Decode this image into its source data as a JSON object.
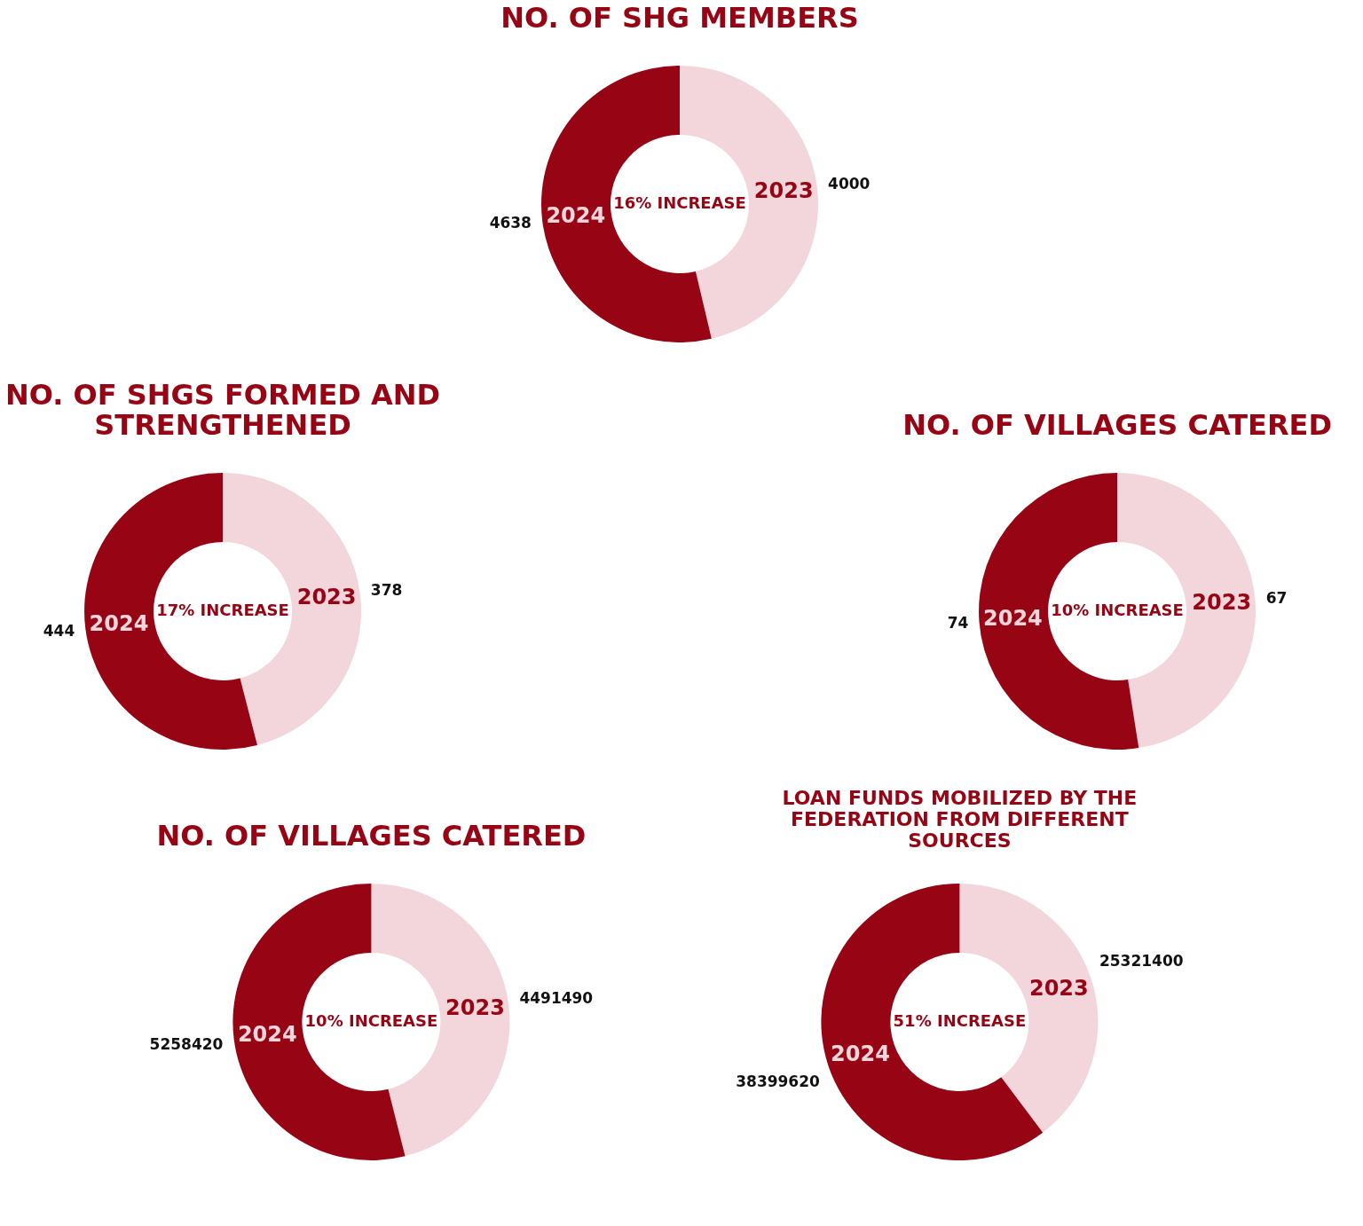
{
  "chart_data": [
    {
      "type": "donut",
      "title": "NO. OF SHG MEMBERS",
      "categories": [
        "2023",
        "2024"
      ],
      "values": [
        4000,
        4638
      ],
      "colors": [
        "#f2d6dc",
        "#970515"
      ],
      "data_labels": true,
      "annotations": [
        "16% INCREASE"
      ]
    },
    {
      "type": "donut",
      "title": "NO. OF SHGS FORMED AND STRENGTHENED",
      "categories": [
        "2023",
        "2024"
      ],
      "values": [
        378,
        444
      ],
      "colors": [
        "#f2d6dc",
        "#970515"
      ],
      "data_labels": true,
      "annotations": [
        "17% INCREASE"
      ]
    },
    {
      "type": "donut",
      "title": "NO. OF VILLAGES CATERED",
      "categories": [
        "2023",
        "2024"
      ],
      "values": [
        67,
        74
      ],
      "colors": [
        "#f2d6dc",
        "#970515"
      ],
      "data_labels": true,
      "annotations": [
        "10% INCREASE"
      ]
    },
    {
      "type": "donut",
      "title": "NO. OF VILLAGES CATERED",
      "categories": [
        "2023",
        "2024"
      ],
      "values": [
        4491490,
        5258420
      ],
      "colors": [
        "#f2d6dc",
        "#970515"
      ],
      "data_labels": true,
      "annotations": [
        "10% INCREASE"
      ]
    },
    {
      "type": "donut",
      "title": "LOAN FUNDS MOBILIZED BY THE FEDERATION FROM DIFFERENT SOURCES",
      "categories": [
        "2023",
        "2024"
      ],
      "values": [
        25321400,
        38399620
      ],
      "colors": [
        "#f2d6dc",
        "#970515"
      ],
      "data_labels": true,
      "annotations": [
        "51% INCREASE"
      ]
    }
  ]
}
